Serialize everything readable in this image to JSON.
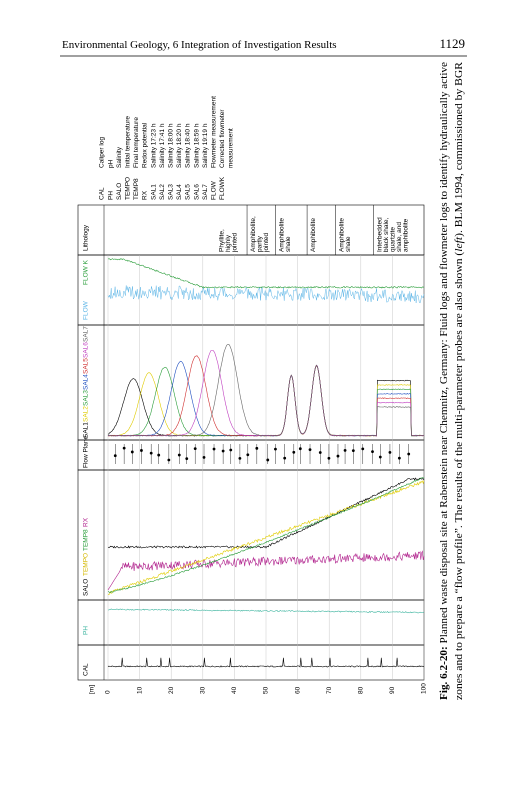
{
  "header": {
    "title": "Environmental Geology, 6 Integration of Investigation Results",
    "page": "1129"
  },
  "figure": {
    "depth_unit": "[m]",
    "depth_ticks": [
      0,
      10,
      20,
      30,
      40,
      50,
      60,
      70,
      80,
      90,
      100
    ],
    "track_labels": {
      "cal": "CAL",
      "ph": "PH",
      "salo": "SALO",
      "tempo": "TEMPO",
      "temp8": "TEMP8",
      "rx": "RX",
      "flow_plane": "Flow Plane",
      "sal": [
        "SAL1",
        "SAL2",
        "SAL3",
        "SAL4",
        "SAL5",
        "SAL6",
        "SAL7"
      ],
      "flow": "FLOW",
      "flowk": "FLOW K",
      "lithology": "Lithology"
    },
    "lithology": [
      [
        "Phyllite,",
        "highly",
        "jointed"
      ],
      [
        "Amphibolite,",
        "partly",
        "jointed"
      ],
      [
        "Amphibolite",
        "shale"
      ],
      [
        "Amphibolite"
      ],
      [
        "Amphibolite",
        "shale"
      ],
      [
        "Interbedded",
        "black shale,",
        "quartzite",
        "shale, and",
        "amphibolite"
      ]
    ],
    "legend": [
      {
        "code": "CAL",
        "lines": [
          "Caliper log"
        ]
      },
      {
        "code": "PH",
        "lines": [
          "pH"
        ]
      },
      {
        "code": "SALO",
        "lines": [
          "Salinity"
        ]
      },
      {
        "code": "TEMPO",
        "lines": [
          "Initial temperature"
        ]
      },
      {
        "code": "TEMP8",
        "lines": [
          "Final temperature"
        ]
      },
      {
        "code": "RX",
        "lines": [
          "Redox potential"
        ]
      },
      {
        "code": "SAL1",
        "lines": [
          "Salinity 17:23 h"
        ]
      },
      {
        "code": "SAL2",
        "lines": [
          "Salinity 17:41 h"
        ]
      },
      {
        "code": "SAL3",
        "lines": [
          "Salinity 18:00 h"
        ]
      },
      {
        "code": "SAL4",
        "lines": [
          "Salinity 18:20 h"
        ]
      },
      {
        "code": "SAL5",
        "lines": [
          "Salinity 18:40 h"
        ]
      },
      {
        "code": "SAL6",
        "lines": [
          "Salinity 18:59 h"
        ]
      },
      {
        "code": "SAL7",
        "lines": [
          "Salinity 19:19 h"
        ]
      },
      {
        "code": "FLOW",
        "lines": [
          "Flowmeter measurement"
        ]
      },
      {
        "code": "FLOWK",
        "lines": [
          "Corrected flowmeter",
          "measurement"
        ]
      }
    ]
  },
  "caption": {
    "label": "Fig. 6.2-20:",
    "line1": " Planned waste disposal site at Rabenstein near Chemnitz, Germany: Fluid logs and flowmeter logs to identify hydraulically active",
    "line2_a": "zones and to prepare a “flow profile”. The results of the multi-parameter probes are also shown (",
    "line2_em": "left",
    "line2_b": "). BLM 1994, commissioned by BGR"
  }
}
